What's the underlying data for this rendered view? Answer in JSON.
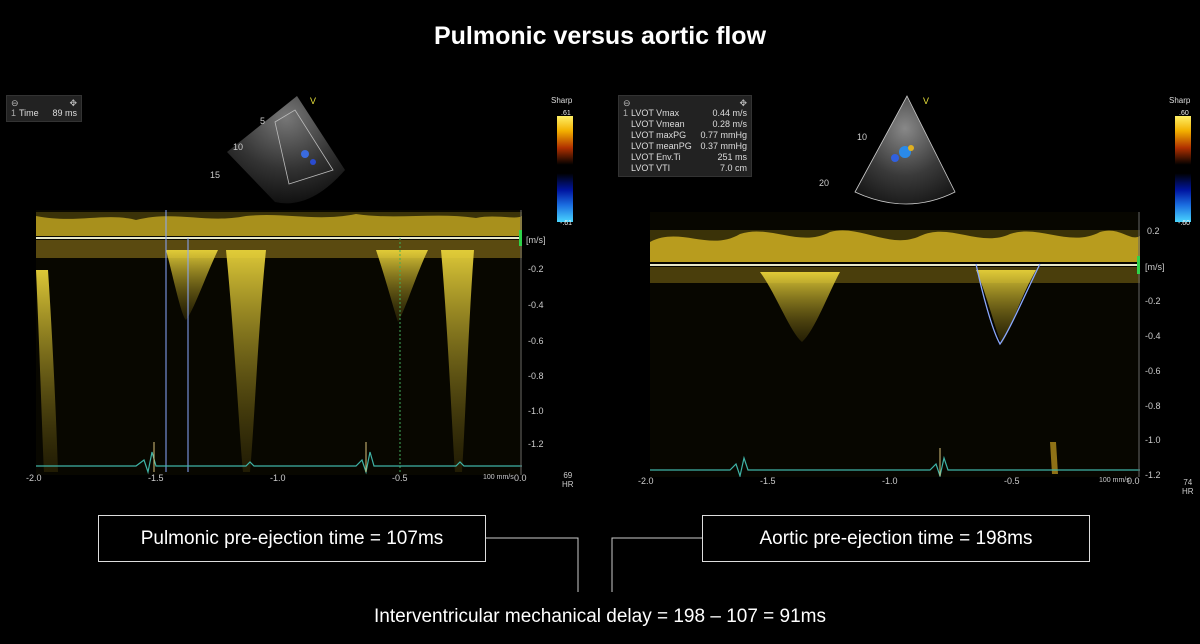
{
  "title": "Pulmonic versus aortic flow",
  "left_panel": {
    "measure_header_icon": "collapse-icon",
    "measure_rows": [
      {
        "n": "1",
        "label": "Time",
        "value": "89 ms"
      }
    ],
    "sector_depths": [
      "5",
      "10",
      "15"
    ],
    "sector_marker": "V",
    "sharp_label": "Sharp",
    "colorbar_top": ".61",
    "colorbar_bottom": "-.61",
    "unit_label": "[m/s]",
    "y_ticks": [
      "-0.2",
      "-0.4",
      "-0.6",
      "-0.8",
      "-1.0",
      "-1.2"
    ],
    "x_ticks": [
      "-2.0",
      "-1.5",
      "-1.0",
      "-0.5",
      "0.0"
    ],
    "sweep_label": "100 mm/s",
    "hr_value": "69",
    "hr_label": "HR"
  },
  "right_panel": {
    "measure_header_icon": "collapse-icon",
    "measure_rows": [
      {
        "n": "1",
        "label": "LVOT Vmax",
        "value": "0.44 m/s"
      },
      {
        "n": "",
        "label": "LVOT Vmean",
        "value": "0.28 m/s"
      },
      {
        "n": "",
        "label": "LVOT maxPG",
        "value": "0.77 mmHg"
      },
      {
        "n": "",
        "label": "LVOT meanPG",
        "value": "0.37 mmHg"
      },
      {
        "n": "",
        "label": "LVOT Env.Ti",
        "value": "251 ms"
      },
      {
        "n": "",
        "label": "LVOT VTI",
        "value": "7.0 cm"
      }
    ],
    "sector_depths": [
      "10",
      "20"
    ],
    "sector_marker": "V",
    "sharp_label": "Sharp",
    "colorbar_top": ".60",
    "colorbar_bottom": "-.60",
    "unit_label": "[m/s]",
    "y_ticks": [
      "0.2",
      "-0.2",
      "-0.4",
      "-0.6",
      "-0.8",
      "-1.0",
      "-1.2"
    ],
    "x_ticks": [
      "-2.0",
      "-1.5",
      "-1.0",
      "-0.5",
      "0.0"
    ],
    "sweep_label": "100 mm/s",
    "hr_value": "74",
    "hr_label": "HR"
  },
  "labels": {
    "pulmonic": "Pulmonic pre-ejection time = 107ms",
    "aortic": "Aortic pre-ejection time = 198ms",
    "delay": "Interventricular mechanical delay = 198 – 107 = 91ms"
  },
  "colors": {
    "doppler": "#e8d23a",
    "ecg": "#3fb3a6",
    "caliper": "#8aa8ff",
    "marker_green": "#2fd34a"
  }
}
